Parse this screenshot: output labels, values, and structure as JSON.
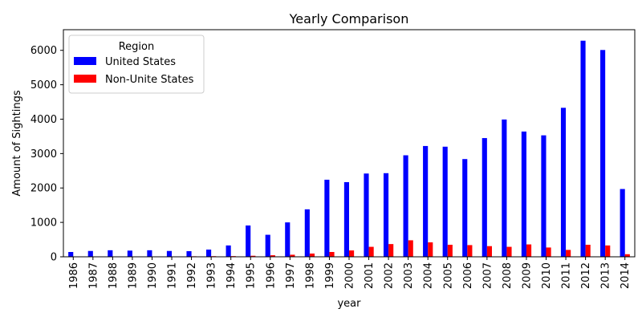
{
  "chart_data": {
    "type": "bar",
    "title": "Yearly Comparison",
    "xlabel": "year",
    "ylabel": "Amount of Sightings",
    "ylim": [
      0,
      6600
    ],
    "yticks": [
      0,
      1000,
      2000,
      3000,
      4000,
      5000,
      6000
    ],
    "grid": false,
    "legend": {
      "title": "Region",
      "placement": "top-left"
    },
    "categories": [
      "1986",
      "1987",
      "1988",
      "1989",
      "1990",
      "1991",
      "1992",
      "1993",
      "1994",
      "1995",
      "1996",
      "1997",
      "1998",
      "1999",
      "2000",
      "2001",
      "2002",
      "2003",
      "2004",
      "2005",
      "2006",
      "2007",
      "2008",
      "2009",
      "2010",
      "2011",
      "2012",
      "2013",
      "2014"
    ],
    "series": [
      {
        "name": "United States",
        "color": "#0000ff",
        "values": [
          140,
          170,
          190,
          180,
          190,
          170,
          165,
          210,
          330,
          910,
          640,
          1000,
          1380,
          2240,
          2170,
          2420,
          2430,
          2950,
          3220,
          3200,
          2840,
          3450,
          3990,
          3640,
          3530,
          4330,
          6280,
          6010,
          1970
        ]
      },
      {
        "name": "Non-Unite States",
        "color": "#ff0000",
        "values": [
          5,
          8,
          5,
          5,
          10,
          8,
          15,
          18,
          20,
          30,
          45,
          60,
          95,
          140,
          185,
          290,
          370,
          480,
          420,
          350,
          340,
          310,
          290,
          360,
          270,
          200,
          350,
          330,
          75
        ]
      }
    ]
  }
}
